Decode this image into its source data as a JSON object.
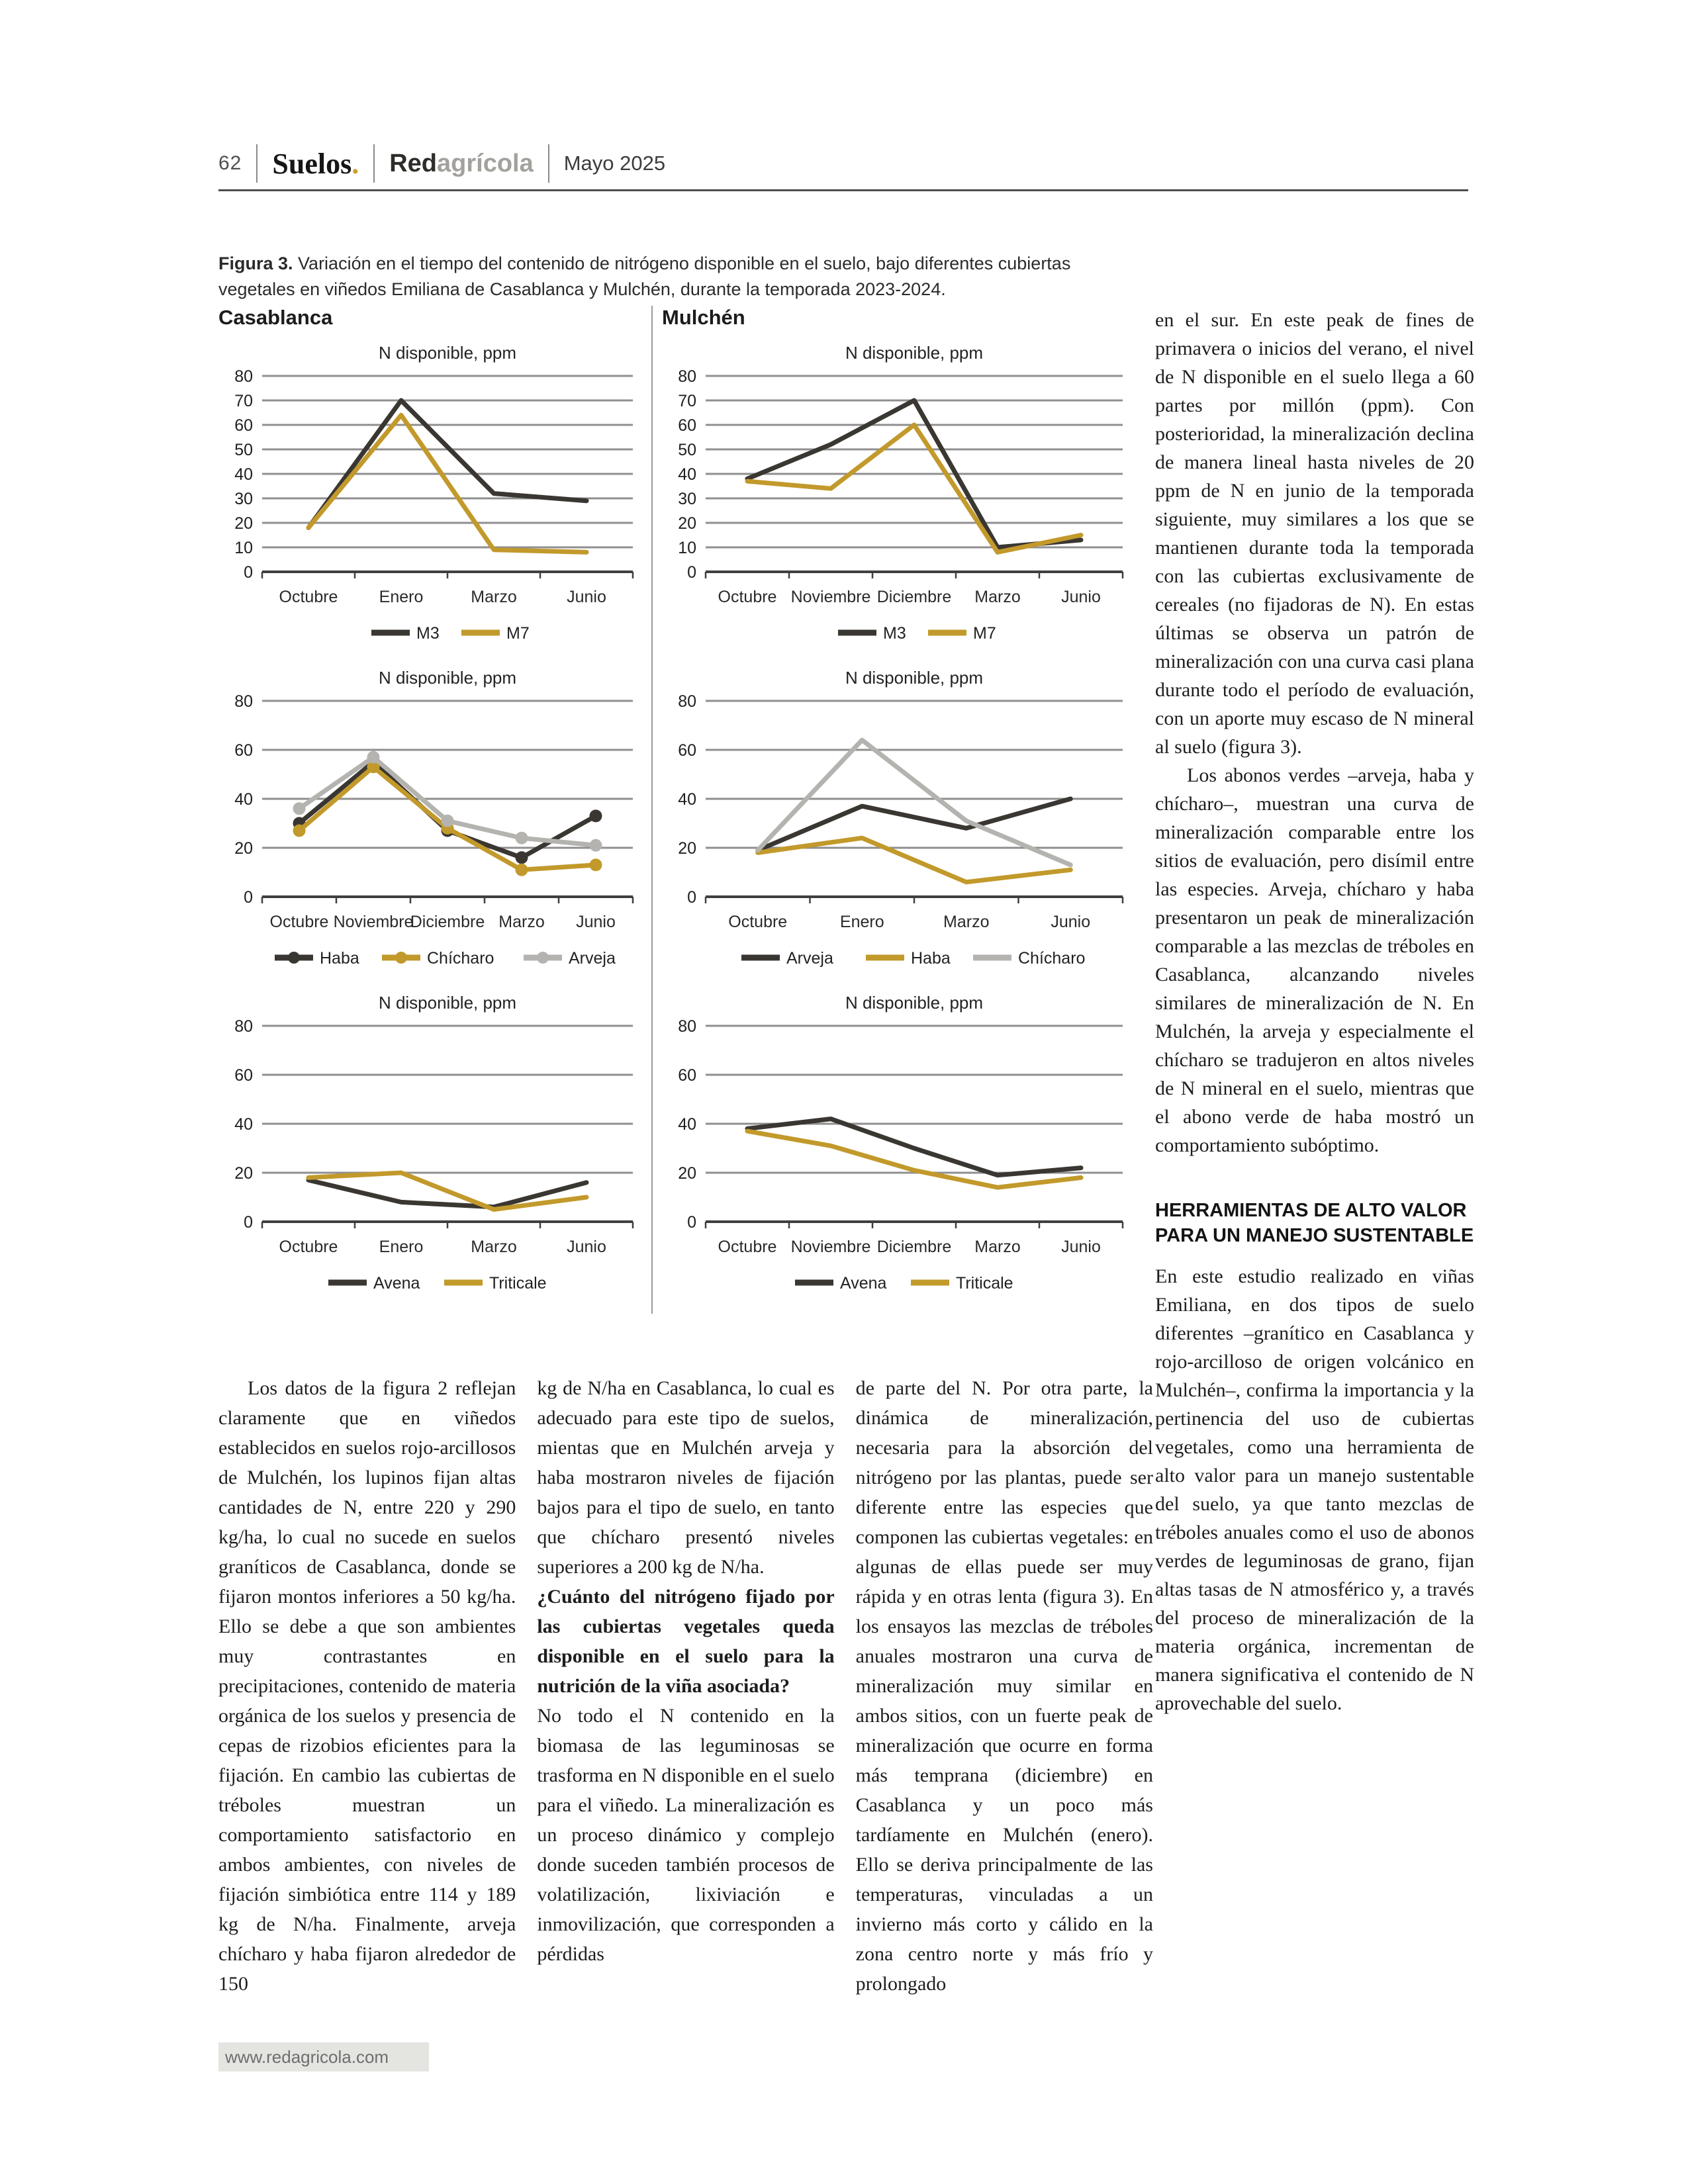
{
  "header": {
    "page_number": "62",
    "section": "Suelos",
    "section_dot": ".",
    "brand_bold": "Red",
    "brand_light": "agrícola",
    "date": "Mayo 2025"
  },
  "figure_caption": {
    "label": "Figura 3.",
    "text": "Variación en el tiempo del contenido de nitrógeno disponible en el suelo, bajo diferentes cubiertas vegetales en viñedos Emiliana de Casablanca y Mulchén, durante la temporada 2023-2024."
  },
  "colors": {
    "dark": "#3A3732",
    "gold": "#C2992B",
    "gray": "#B4B3AF",
    "grid": "#8F8F8F",
    "axis": "#3F3F3F",
    "accent": "#C9A227"
  },
  "chart_data": [
    {
      "site": "Casablanca",
      "type": "line",
      "title": "N disponible, ppm",
      "categories": [
        "Octubre",
        "Enero",
        "Marzo",
        "Junio"
      ],
      "series": [
        {
          "name": "M3",
          "color": "dark",
          "values": [
            18,
            70,
            32,
            29
          ]
        },
        {
          "name": "M7",
          "color": "gold",
          "values": [
            18,
            64,
            9,
            8
          ]
        }
      ],
      "ylim": [
        0,
        80
      ],
      "ytick_step": 10,
      "markers": false,
      "grid": true,
      "legend_position": "bottom"
    },
    {
      "site": "Casablanca",
      "type": "line",
      "title": "N disponible, ppm",
      "categories": [
        "Octubre",
        "Noviembre",
        "Diciembre",
        "Marzo",
        "Junio"
      ],
      "series": [
        {
          "name": "Haba",
          "color": "dark",
          "values": [
            30,
            55,
            27,
            16,
            33
          ]
        },
        {
          "name": "Chícharo",
          "color": "gold",
          "values": [
            27,
            53,
            28,
            11,
            13
          ]
        },
        {
          "name": "Arveja",
          "color": "gray",
          "values": [
            36,
            57,
            31,
            24,
            21
          ]
        }
      ],
      "ylim": [
        0,
        80
      ],
      "ytick_step": 20,
      "markers": true,
      "grid": true,
      "legend_position": "bottom"
    },
    {
      "site": "Casablanca",
      "type": "line",
      "title": "N disponible, ppm",
      "categories": [
        "Octubre",
        "Enero",
        "Marzo",
        "Junio"
      ],
      "series": [
        {
          "name": "Avena",
          "color": "dark",
          "values": [
            17,
            8,
            6,
            16
          ]
        },
        {
          "name": "Triticale",
          "color": "gold",
          "values": [
            18,
            20,
            5,
            10
          ]
        }
      ],
      "ylim": [
        0,
        80
      ],
      "ytick_step": 20,
      "markers": false,
      "grid": true,
      "legend_position": "bottom"
    },
    {
      "site": "Mulchén",
      "type": "line",
      "title": "N disponible, ppm",
      "categories": [
        "Octubre",
        "Noviembre",
        "Diciembre",
        "Marzo",
        "Junio"
      ],
      "series": [
        {
          "name": "M3",
          "color": "dark",
          "values": [
            38,
            52,
            70,
            10,
            13
          ]
        },
        {
          "name": "M7",
          "color": "gold",
          "values": [
            37,
            34,
            60,
            8,
            15
          ]
        }
      ],
      "ylim": [
        0,
        80
      ],
      "ytick_step": 10,
      "markers": false,
      "grid": true,
      "legend_position": "bottom"
    },
    {
      "site": "Mulchén",
      "type": "line",
      "title": "N disponible, ppm",
      "categories": [
        "Octubre",
        "Enero",
        "Marzo",
        "Junio"
      ],
      "series": [
        {
          "name": "Arveja",
          "color": "dark",
          "values": [
            19,
            37,
            28,
            40
          ]
        },
        {
          "name": "Haba",
          "color": "gold",
          "values": [
            18,
            24,
            6,
            11
          ]
        },
        {
          "name": "Chícharo",
          "color": "gray",
          "values": [
            19,
            64,
            31,
            13
          ]
        }
      ],
      "ylim": [
        0,
        80
      ],
      "ytick_step": 20,
      "markers": false,
      "grid": true,
      "legend_position": "bottom"
    },
    {
      "site": "Mulchén",
      "type": "line",
      "title": "N disponible, ppm",
      "categories": [
        "Octubre",
        "Noviembre",
        "Diciembre",
        "Marzo",
        "Junio"
      ],
      "series": [
        {
          "name": "Avena",
          "color": "dark",
          "values": [
            38,
            42,
            30,
            19,
            22
          ]
        },
        {
          "name": "Triticale",
          "color": "gold",
          "values": [
            37,
            31,
            21,
            14,
            18
          ]
        }
      ],
      "ylim": [
        0,
        80
      ],
      "ytick_step": 20,
      "markers": false,
      "grid": true,
      "legend_position": "bottom"
    }
  ],
  "rail": {
    "p1": "en el sur. En este peak de fines de primavera o inicios del verano, el nivel de N disponible en el suelo llega a 60 partes por millón (ppm). Con posterioridad, la mineralización declina de manera lineal hasta niveles de 20 ppm de N en junio de la temporada siguiente, muy similares a los que se mantienen durante toda la temporada con las cubiertas exclusivamente de cereales (no fijadoras de N). En estas últimas se observa un patrón de mineralización con una curva casi plana durante todo el período de evaluación, con un aporte muy escaso de N mineral al suelo (figura 3).",
    "p2": "Los abonos verdes –arveja, haba y chícharo–, muestran una curva de mineralización comparable entre los sitios de evaluación, pero disímil entre las especies. Arveja, chícharo y haba presentaron un peak de mineralización comparable a las mezclas de tréboles en Casablanca, alcanzando niveles similares de mineralización de N. En Mulchén, la arveja y especialmente el chícharo se tradujeron en altos niveles de N mineral en el suelo, mientras que el abono verde de haba mostró un comportamiento subóptimo.",
    "heading": "HERRAMIENTAS DE ALTO VALOR PARA UN MANEJO SUSTENTABLE",
    "p3": "En este estudio realizado en viñas Emiliana, en dos tipos de suelo diferentes –granítico en Casablanca y rojo-arcilloso de origen volcánico en Mulchén–, confirma la importancia y la pertinencia del uso de cubiertas vegetales, como una herramienta de alto valor para un manejo sustentable del suelo, ya que tanto mezclas de tréboles anuales como el uso de abonos verdes de leguminosas de grano, fijan altas tasas de N atmosférico y, a través del proceso de mineralización de la materia orgánica, incrementan de manera significativa el contenido de N aprovechable del suelo."
  },
  "body": {
    "col1": "Los datos de la figura 2 reflejan claramente que en viñedos establecidos en suelos rojo-arcillosos de Mulchén, los lupinos fijan altas cantidades de N, entre 220 y 290 kg/ha, lo cual no sucede en suelos graníticos de Casablanca, donde se fijaron montos inferiores a 50 kg/ha. Ello se debe a que son ambientes muy contrastantes en precipitaciones, contenido de materia orgánica de los suelos y presencia de cepas de rizobios eficientes para la fijación. En cambio las cubiertas de tréboles muestran un comportamiento satisfactorio en ambos ambientes, con niveles de fijación simbiótica entre 114 y 189 kg de N/ha. Finalmente, arveja chícharo y haba fijaron alrededor de 150",
    "col2_a": "kg de N/ha en Casablanca, lo cual es adecuado para este tipo de suelos, mientas que en Mulchén arveja y haba mostraron niveles de fijación bajos para el tipo de suelo, en tanto que chícharo presentó niveles superiores a 200 kg de N/ha.",
    "col2_q": "¿Cuánto del nitrógeno fijado por las cubiertas vegetales queda disponible en el suelo para la nutrición de la viña asociada?",
    "col2_b": "No todo el N contenido en la biomasa de las leguminosas se trasforma en N disponible en el suelo para el viñedo. La mineralización es un proceso dinámico y complejo donde suceden también procesos de volatilización, lixiviación e inmovilización, que corresponden a pérdidas",
    "col3": "de parte del N. Por otra parte, la dinámica de mineralización, necesaria para la absorción del nitrógeno por las plantas, puede ser diferente entre las especies que componen las cubiertas vegetales: en algunas de ellas puede ser muy rápida y en otras lenta (figura 3). En los ensayos las mezclas de tréboles anuales mostraron una curva de mineralización muy similar en ambos sitios, con un fuerte peak de mineralización que ocurre en forma más temprana (diciembre) en Casablanca y un poco más tardíamente en Mulchén (enero). Ello se deriva principalmente de las temperaturas, vinculadas a un invierno más corto y cálido en la zona centro norte y más frío y prolongado"
  },
  "footer": {
    "url": "www.redagricola.com"
  }
}
